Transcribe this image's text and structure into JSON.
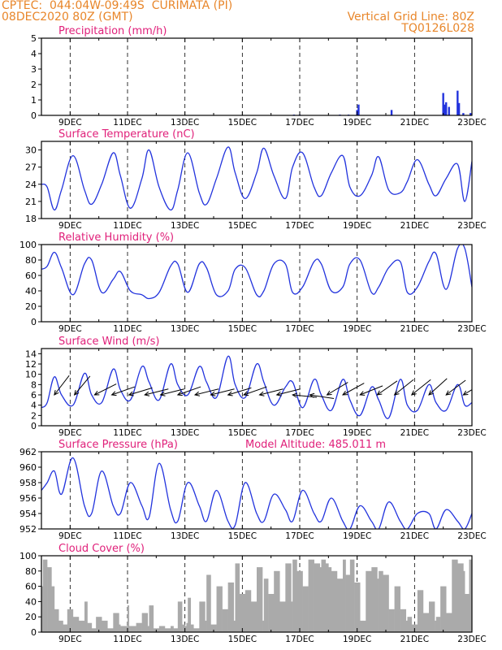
{
  "header": {
    "line1_left": "CPTEC:  044:04W-09:49S  CURIMATA (PI)",
    "line2_left": "08DEC2020 80Z (GMT)",
    "line1_right": "Vertical Grid Line: 80Z",
    "line2_right": "TQ0126L028"
  },
  "colors": {
    "header": "#e8862a",
    "title": "#e0207a",
    "series": "#2233dd",
    "cloud": "#aaaaaa"
  },
  "x_ticks": [
    "9DEC",
    "11DEC",
    "13DEC",
    "15DEC",
    "17DEC",
    "19DEC",
    "21DEC",
    "23DEC"
  ],
  "x_tick_days": [
    9,
    11,
    13,
    15,
    17,
    19,
    21,
    23
  ],
  "x_range_days": [
    8,
    23
  ],
  "panels": [
    {
      "id": "precip",
      "title": "Precipitation (mm/h)",
      "subtitle": "",
      "chart_data": {
        "type": "bar",
        "ylim": [
          0,
          5
        ],
        "yticks": [
          0,
          1,
          2,
          3,
          4,
          5
        ],
        "x_unit": "day of December 2020",
        "x": [
          16.8,
          17.0,
          18.4,
          18.7,
          19.0,
          19.05,
          20.2,
          22.0,
          22.05,
          22.1,
          22.2,
          22.5,
          22.55,
          22.7,
          22.95
        ],
        "values": [
          0.05,
          0.05,
          0.05,
          0.05,
          0.35,
          0.7,
          0.35,
          1.45,
          0.7,
          0.85,
          0.55,
          1.6,
          0.8,
          0.15,
          0.15
        ]
      }
    },
    {
      "id": "temp",
      "title": "Surface Temperature (nC)",
      "subtitle": "",
      "chart_data": {
        "type": "line",
        "ylim": [
          18,
          31.5
        ],
        "yticks": [
          18,
          21,
          24,
          27,
          30
        ],
        "x_unit": "day of December 2020",
        "x": [
          8.0,
          8.2,
          8.45,
          8.7,
          9.1,
          9.5,
          9.75,
          10.1,
          10.5,
          10.75,
          11.1,
          11.5,
          11.75,
          12.1,
          12.5,
          12.75,
          13.1,
          13.5,
          13.75,
          14.1,
          14.5,
          14.75,
          15.1,
          15.5,
          15.75,
          16.1,
          16.5,
          16.75,
          17.1,
          17.5,
          17.75,
          18.1,
          18.5,
          18.75,
          19.1,
          19.5,
          19.75,
          20.1,
          20.5,
          20.75,
          21.1,
          21.5,
          21.75,
          22.1,
          22.5,
          22.75,
          23.0
        ],
        "values": [
          24,
          23.5,
          19.5,
          23,
          29,
          23,
          20.5,
          24,
          29.5,
          25.5,
          19.8,
          25,
          30,
          23.5,
          19.5,
          23,
          29.5,
          22.5,
          20.5,
          25,
          30.5,
          26,
          21.5,
          26,
          30.3,
          25.5,
          21.5,
          27,
          29.5,
          23.5,
          22,
          26,
          29,
          23.5,
          22,
          25.5,
          28.8,
          23,
          22.5,
          24.5,
          28.3,
          24,
          22,
          25,
          27.5,
          21,
          28
        ]
      }
    },
    {
      "id": "rh",
      "title": "Relative Humidity (%)",
      "subtitle": "",
      "chart_data": {
        "type": "line",
        "ylim": [
          0,
          100
        ],
        "yticks": [
          0,
          20,
          40,
          60,
          80,
          100
        ],
        "x_unit": "day of December 2020",
        "x": [
          8.0,
          8.2,
          8.45,
          8.7,
          9.1,
          9.5,
          9.75,
          10.1,
          10.5,
          10.75,
          11.1,
          11.5,
          11.75,
          12.1,
          12.5,
          12.75,
          13.1,
          13.5,
          13.75,
          14.1,
          14.5,
          14.75,
          15.1,
          15.5,
          15.75,
          16.1,
          16.5,
          16.75,
          17.1,
          17.5,
          17.75,
          18.1,
          18.5,
          18.75,
          19.1,
          19.5,
          19.75,
          20.1,
          20.5,
          20.75,
          21.1,
          21.5,
          21.75,
          22.1,
          22.5,
          22.75,
          23.0
        ],
        "values": [
          68,
          72,
          90,
          70,
          35,
          75,
          80,
          38,
          55,
          65,
          40,
          35,
          30,
          38,
          72,
          75,
          38,
          75,
          70,
          35,
          40,
          68,
          70,
          35,
          40,
          75,
          75,
          38,
          45,
          78,
          75,
          40,
          45,
          75,
          80,
          38,
          45,
          70,
          78,
          38,
          45,
          78,
          88,
          42,
          95,
          95,
          45
        ]
      }
    },
    {
      "id": "wind",
      "title": "Surface Wind (m/s)",
      "subtitle": "",
      "chart_data": {
        "type": "line",
        "ylim": [
          0,
          15
        ],
        "yticks": [
          0,
          2,
          4,
          6,
          8,
          10,
          12,
          14
        ],
        "x_unit": "day of December 2020",
        "x": [
          8.0,
          8.2,
          8.45,
          8.7,
          9.1,
          9.5,
          9.75,
          10.1,
          10.5,
          10.75,
          11.1,
          11.5,
          11.75,
          12.1,
          12.5,
          12.75,
          13.1,
          13.5,
          13.75,
          14.1,
          14.5,
          14.75,
          15.1,
          15.5,
          15.75,
          16.1,
          16.5,
          16.75,
          17.1,
          17.5,
          17.75,
          18.1,
          18.5,
          18.75,
          19.1,
          19.5,
          19.75,
          20.1,
          20.5,
          20.75,
          21.1,
          21.5,
          21.75,
          22.1,
          22.5,
          22.75,
          23.0
        ],
        "values": [
          3.5,
          4.5,
          9.5,
          6,
          4,
          10.2,
          6,
          4.5,
          11,
          7,
          5,
          11.5,
          8.5,
          5,
          12,
          8,
          6,
          11.5,
          8.5,
          5.5,
          13.5,
          8,
          5.5,
          12,
          8.5,
          4,
          7.5,
          8.5,
          3.5,
          9,
          6,
          3,
          9,
          5,
          2,
          7.5,
          5,
          1.5,
          9,
          4,
          3,
          8,
          4.5,
          3,
          8,
          4,
          4.5
        ],
        "arrows": {
          "x": [
            8.45,
            9.15,
            9.85,
            10.45,
            11.05,
            11.6,
            12.15,
            12.75,
            13.35,
            13.9,
            14.5,
            15.05,
            15.6,
            16.2,
            16.75,
            17.35,
            17.95,
            18.5,
            19.1,
            19.7,
            20.3,
            20.9,
            21.5,
            22.1,
            22.7
          ],
          "u": [
            -1,
            -1,
            -1,
            -1,
            -1,
            -1,
            -1,
            -1,
            -1,
            -1,
            -1,
            -1,
            -1,
            -1,
            -1,
            -1,
            -1,
            -1,
            -1,
            -1,
            -1,
            -1,
            -1,
            -1,
            -1
          ],
          "v": [
            -1.3,
            -1.2,
            -0.5,
            -0.35,
            -0.3,
            -0.25,
            -0.25,
            -0.35,
            -0.25,
            -0.25,
            -0.3,
            -0.35,
            -0.25,
            -0.25,
            0.1,
            0.15,
            -0.6,
            -0.55,
            -0.4,
            -0.7,
            -0.8,
            -0.8,
            -0.9,
            -0.75,
            -0.6
          ]
        }
      }
    },
    {
      "id": "pres",
      "title": "Surface Pressure (hPa)",
      "subtitle": "Model Altitude: 485.011 m",
      "chart_data": {
        "type": "line",
        "ylim": [
          952,
          962
        ],
        "yticks": [
          952,
          954,
          956,
          958,
          960,
          962
        ],
        "x_unit": "day of December 2020",
        "x": [
          8.0,
          8.2,
          8.45,
          8.7,
          9.1,
          9.5,
          9.75,
          10.1,
          10.5,
          10.75,
          11.1,
          11.5,
          11.75,
          12.1,
          12.5,
          12.75,
          13.1,
          13.5,
          13.75,
          14.1,
          14.5,
          14.75,
          15.1,
          15.5,
          15.75,
          16.1,
          16.5,
          16.75,
          17.1,
          17.5,
          17.75,
          18.1,
          18.5,
          18.75,
          19.1,
          19.5,
          19.75,
          20.1,
          20.5,
          20.75,
          21.1,
          21.5,
          21.75,
          22.1,
          22.5,
          22.75,
          23.0
        ],
        "values": [
          957,
          958,
          959.5,
          956.5,
          961.2,
          955,
          954,
          959.5,
          955,
          954,
          958,
          955,
          953.5,
          960.5,
          954.5,
          953,
          958,
          955,
          953,
          957,
          953,
          952.5,
          958,
          954,
          953,
          956.5,
          954.5,
          953,
          957,
          954,
          953,
          956,
          953,
          952,
          955,
          953,
          952,
          955.5,
          953,
          952,
          954,
          954,
          952,
          954.5,
          953,
          952,
          954
        ]
      }
    },
    {
      "id": "cloud",
      "title": "Cloud Cover (%)",
      "subtitle": "",
      "chart_data": {
        "type": "area",
        "ylim": [
          0,
          100
        ],
        "yticks": [
          0,
          20,
          40,
          60,
          80,
          100
        ],
        "x_unit": "day of December 2020",
        "x": [
          8.0,
          8.05,
          8.2,
          8.35,
          8.45,
          8.6,
          8.75,
          8.9,
          9.1,
          9.3,
          9.5,
          9.6,
          9.75,
          9.9,
          10.1,
          10.3,
          10.5,
          10.7,
          10.75,
          10.9,
          11.0,
          11.05,
          11.1,
          11.3,
          11.5,
          11.7,
          11.75,
          11.9,
          12.1,
          12.3,
          12.5,
          12.6,
          12.75,
          12.9,
          13.0,
          13.05,
          13.1,
          13.2,
          13.3,
          13.5,
          13.7,
          13.75,
          13.9,
          14.1,
          14.3,
          14.5,
          14.7,
          14.75,
          14.9,
          15.1,
          15.3,
          15.5,
          15.7,
          15.75,
          15.9,
          16.1,
          16.3,
          16.5,
          16.7,
          16.75,
          16.9,
          17.1,
          17.3,
          17.5,
          17.7,
          17.75,
          17.9,
          18.0,
          18.1,
          18.3,
          18.5,
          18.6,
          18.75,
          18.9,
          19.1,
          19.3,
          19.5,
          19.7,
          19.75,
          19.9,
          20.1,
          20.3,
          20.5,
          20.7,
          20.75,
          20.9,
          21.1,
          21.3,
          21.5,
          21.7,
          21.75,
          21.9,
          22.1,
          22.3,
          22.5,
          22.7,
          22.75,
          22.9,
          23.0
        ],
        "values": [
          60,
          95,
          85,
          60,
          30,
          15,
          10,
          30,
          20,
          15,
          40,
          12,
          5,
          20,
          15,
          5,
          25,
          10,
          8,
          8,
          35,
          8,
          8,
          12,
          25,
          8,
          35,
          5,
          8,
          5,
          8,
          5,
          40,
          10,
          8,
          12,
          45,
          10,
          5,
          40,
          15,
          75,
          10,
          60,
          30,
          65,
          15,
          90,
          50,
          55,
          40,
          85,
          15,
          70,
          50,
          80,
          40,
          90,
          40,
          95,
          80,
          60,
          95,
          90,
          85,
          95,
          90,
          85,
          80,
          70,
          95,
          75,
          95,
          65,
          15,
          80,
          85,
          70,
          80,
          75,
          30,
          60,
          30,
          15,
          20,
          10,
          55,
          25,
          40,
          15,
          20,
          60,
          25,
          95,
          90,
          80,
          50,
          95,
          85
        ]
      }
    }
  ]
}
